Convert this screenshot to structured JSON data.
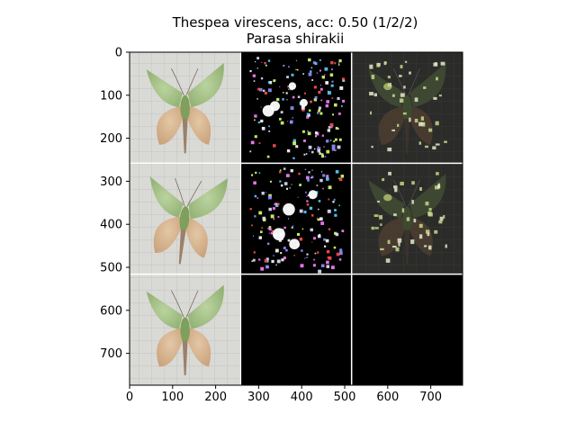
{
  "chart_data": {
    "type": "image-grid",
    "title": "Thespea virescens, acc: 0.50 (1/2/2)",
    "subtitle": "Parasa shirakii",
    "xlabel": "",
    "ylabel": "",
    "xlim": [
      0,
      774
    ],
    "ylim": [
      774,
      0
    ],
    "grid": false,
    "x_ticks": [
      0,
      100,
      200,
      300,
      400,
      500,
      600,
      700
    ],
    "y_ticks": [
      0,
      100,
      200,
      300,
      400,
      500,
      600,
      700
    ],
    "panels": [
      {
        "row": 0,
        "col": 0,
        "content": "moth-photo",
        "specimen": 1
      },
      {
        "row": 0,
        "col": 1,
        "content": "saliency-map",
        "brightness": 0.0
      },
      {
        "row": 0,
        "col": 2,
        "content": "masked-photo",
        "brightness": 0.22
      },
      {
        "row": 1,
        "col": 0,
        "content": "moth-photo",
        "specimen": 2
      },
      {
        "row": 1,
        "col": 1,
        "content": "saliency-map",
        "brightness": 0.0
      },
      {
        "row": 1,
        "col": 2,
        "content": "masked-photo",
        "brightness": 0.22
      },
      {
        "row": 2,
        "col": 0,
        "content": "moth-photo",
        "specimen": 3
      },
      {
        "row": 2,
        "col": 1,
        "content": "blank",
        "brightness": 0.0
      },
      {
        "row": 2,
        "col": 2,
        "content": "blank",
        "brightness": 0.0
      }
    ],
    "colors": {
      "wing_green": "#a8c48a",
      "hindwing_tan": "#d8b48e",
      "paper_bg": "#d9d9d6",
      "divider": "#ffffff",
      "saliency_black": "#000000",
      "masked_dark": "#2b2b29"
    }
  }
}
